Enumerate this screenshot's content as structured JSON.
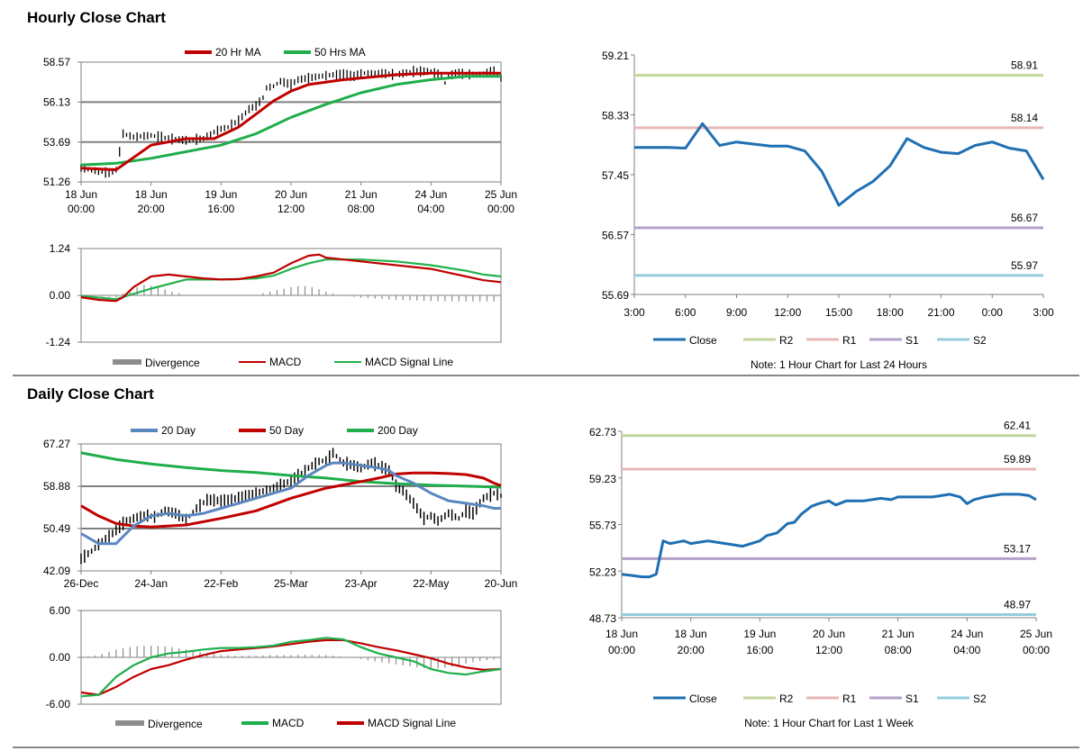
{
  "sections": {
    "hourly_title": "Hourly Close Chart",
    "daily_title": "Daily Close Chart"
  },
  "colors": {
    "ma_red": "#c00000",
    "ma_green": "#1fae4b",
    "ma_blue": "#5b87c0",
    "macd_signal_green": "#22b24c",
    "divergence": "#8c8c8c",
    "close": "#1f6fb2",
    "r2": "#c3d69b",
    "r1": "#e6b8b7",
    "s1": "#b3a2c7",
    "s2": "#93cddd",
    "grid": "#808080",
    "price": "#000000"
  },
  "chart_data": [
    {
      "id": "hourly_ma",
      "type": "line",
      "legend": [
        "20 Hr MA",
        "50 Hrs MA"
      ],
      "yticks": [
        "58.57",
        "56.13",
        "53.69",
        "51.26"
      ],
      "ylim": [
        51.26,
        58.57
      ],
      "xticks": [
        [
          "18 Jun",
          "00:00"
        ],
        [
          "18 Jun",
          "20:00"
        ],
        [
          "19 Jun",
          "16:00"
        ],
        [
          "20 Jun",
          "12:00"
        ],
        [
          "21 Jun",
          "08:00"
        ],
        [
          "24 Jun",
          "04:00"
        ],
        [
          "25 Jun",
          "00:00"
        ]
      ],
      "x_count": 121,
      "price": {
        "x": [
          0,
          8,
          10,
          12,
          15,
          20,
          25,
          30,
          35,
          38,
          40,
          42,
          45,
          48,
          50,
          52,
          53,
          55,
          57,
          60,
          62,
          65,
          68,
          72,
          75,
          78,
          80,
          85,
          90,
          95,
          100,
          103,
          104,
          105,
          106,
          108,
          110,
          115,
          118,
          120
        ],
        "y": [
          52.1,
          51.8,
          52.0,
          54.2,
          54.0,
          54.1,
          53.9,
          53.8,
          53.9,
          54.3,
          54.5,
          54.6,
          55.0,
          55.7,
          55.9,
          56.4,
          57.0,
          57.1,
          57.4,
          57.2,
          57.5,
          57.6,
          57.7,
          57.8,
          57.8,
          57.7,
          57.9,
          57.9,
          57.8,
          58.0,
          58.0,
          57.7,
          57.3,
          57.7,
          57.8,
          57.9,
          57.8,
          57.9,
          58.0,
          57.6
        ]
      },
      "series": [
        {
          "name": "20 Hr MA",
          "x": [
            0,
            10,
            12,
            20,
            30,
            38,
            45,
            50,
            55,
            60,
            65,
            75,
            90,
            100,
            110,
            120
          ],
          "y": [
            52.1,
            52.0,
            52.3,
            53.5,
            53.9,
            53.9,
            54.6,
            55.4,
            56.2,
            56.8,
            57.2,
            57.5,
            57.8,
            57.9,
            57.9,
            57.9
          ]
        },
        {
          "name": "50 Hrs MA",
          "x": [
            0,
            10,
            20,
            30,
            40,
            50,
            60,
            70,
            80,
            90,
            100,
            110,
            120
          ],
          "y": [
            52.3,
            52.4,
            52.7,
            53.1,
            53.5,
            54.2,
            55.2,
            56.0,
            56.7,
            57.2,
            57.5,
            57.7,
            57.7
          ]
        }
      ]
    },
    {
      "id": "hourly_macd",
      "type": "bar+line",
      "legend": [
        "Divergence",
        "MACD",
        "MACD Signal Line"
      ],
      "yticks": [
        "1.24",
        "0.00",
        "-1.24"
      ],
      "ylim": [
        -1.24,
        1.24
      ],
      "x_count": 121,
      "divergence": {
        "x": [
          0,
          10,
          14,
          18,
          22,
          26,
          30,
          35,
          38,
          45,
          50,
          55,
          60,
          63,
          66,
          70,
          74,
          80,
          90,
          100,
          110,
          120
        ],
        "y": [
          0,
          -0.05,
          0.15,
          0.28,
          0.22,
          0.1,
          0.02,
          0.0,
          0.0,
          0.0,
          0.02,
          0.12,
          0.22,
          0.26,
          0.22,
          0.1,
          0.0,
          -0.06,
          -0.12,
          -0.15,
          -0.16,
          -0.16
        ]
      },
      "series": [
        {
          "name": "MACD",
          "x": [
            0,
            5,
            10,
            12,
            15,
            20,
            25,
            30,
            35,
            40,
            45,
            50,
            55,
            60,
            65,
            68,
            70,
            75,
            80,
            90,
            100,
            110,
            115,
            120
          ],
          "y": [
            -0.05,
            -0.12,
            -0.15,
            -0.05,
            0.22,
            0.5,
            0.55,
            0.5,
            0.45,
            0.42,
            0.43,
            0.5,
            0.6,
            0.85,
            1.05,
            1.08,
            1.0,
            0.95,
            0.9,
            0.8,
            0.7,
            0.5,
            0.4,
            0.35
          ]
        },
        {
          "name": "MACD Signal Line",
          "x": [
            0,
            10,
            20,
            30,
            40,
            50,
            55,
            60,
            65,
            70,
            75,
            80,
            90,
            100,
            110,
            115,
            120
          ],
          "y": [
            -0.02,
            -0.1,
            0.18,
            0.42,
            0.42,
            0.45,
            0.52,
            0.7,
            0.85,
            0.95,
            0.95,
            0.95,
            0.9,
            0.8,
            0.65,
            0.55,
            0.5
          ]
        }
      ]
    },
    {
      "id": "hourly_24h",
      "type": "line",
      "legend": [
        "Close",
        "R2",
        "R1",
        "S1",
        "S2"
      ],
      "yticks": [
        "59.21",
        "58.33",
        "57.45",
        "56.57",
        "55.69"
      ],
      "ylim": [
        55.69,
        59.21
      ],
      "xticks": [
        "3:00",
        "6:00",
        "9:00",
        "12:00",
        "15:00",
        "18:00",
        "21:00",
        "0:00",
        "3:00"
      ],
      "levels": [
        {
          "name": "R2",
          "value": 58.91,
          "label": "58.91"
        },
        {
          "name": "R1",
          "value": 58.14,
          "label": "58.14"
        },
        {
          "name": "S1",
          "value": 56.67,
          "label": "56.67"
        },
        {
          "name": "S2",
          "value": 55.97,
          "label": "55.97"
        }
      ],
      "close": {
        "x": [
          0,
          1,
          2,
          3,
          4,
          5,
          6,
          7,
          8,
          9,
          10,
          11,
          12,
          13,
          14,
          15,
          16,
          17,
          18,
          19,
          20,
          21,
          22,
          23,
          24
        ],
        "y": [
          57.85,
          57.85,
          57.85,
          57.84,
          58.2,
          57.88,
          57.93,
          57.9,
          57.87,
          57.87,
          57.8,
          57.5,
          57.0,
          57.2,
          57.35,
          57.58,
          57.98,
          57.85,
          57.78,
          57.76,
          57.88,
          57.93,
          57.84,
          57.8,
          57.38
        ]
      },
      "note": "Note: 1 Hour Chart for Last 24 Hours"
    },
    {
      "id": "daily_ma",
      "type": "line",
      "legend": [
        "20 Day",
        "50 Day",
        "200 Day"
      ],
      "yticks": [
        "67.27",
        "58.88",
        "50.49",
        "42.09"
      ],
      "ylim": [
        42.09,
        67.27
      ],
      "xticks": [
        "26-Dec",
        "24-Jan",
        "22-Feb",
        "25-Mar",
        "23-Apr",
        "22-May",
        "20-Jun"
      ],
      "x_count": 121,
      "price": {
        "x": [
          0,
          3,
          6,
          9,
          12,
          15,
          18,
          21,
          24,
          27,
          30,
          33,
          36,
          40,
          45,
          50,
          55,
          60,
          65,
          68,
          70,
          72,
          75,
          78,
          80,
          83,
          85,
          88,
          90,
          92,
          95,
          98,
          100,
          102,
          105,
          108,
          110,
          112,
          115,
          118,
          120
        ],
        "y": [
          44.5,
          46.0,
          48.0,
          49.5,
          51.5,
          52.5,
          53.2,
          52.8,
          54.0,
          53.5,
          52.2,
          54.5,
          56.2,
          56.0,
          56.5,
          57.5,
          58.5,
          60.0,
          62.5,
          63.8,
          64.0,
          65.5,
          63.5,
          63.0,
          62.5,
          63.5,
          63.0,
          62.0,
          59.0,
          58.0,
          55.5,
          52.5,
          53.0,
          52.0,
          53.5,
          52.5,
          54.0,
          53.5,
          56.5,
          57.5,
          57.0
        ]
      },
      "series": [
        {
          "name": "20 Day",
          "x": [
            0,
            5,
            10,
            15,
            20,
            25,
            30,
            35,
            40,
            45,
            50,
            55,
            60,
            65,
            70,
            72,
            75,
            80,
            85,
            88,
            90,
            95,
            100,
            105,
            110,
            115,
            118,
            120
          ],
          "y": [
            49.5,
            47.5,
            47.5,
            51.0,
            53.0,
            53.5,
            53.0,
            53.5,
            54.5,
            55.5,
            56.5,
            57.5,
            58.5,
            61.0,
            63.0,
            63.5,
            63.5,
            63.0,
            62.5,
            62.0,
            61.0,
            59.5,
            57.5,
            56.0,
            55.5,
            55.0,
            54.5,
            54.5
          ]
        },
        {
          "name": "50 Day",
          "x": [
            0,
            5,
            10,
            15,
            20,
            25,
            30,
            40,
            50,
            60,
            70,
            80,
            85,
            90,
            95,
            100,
            105,
            110,
            115,
            118,
            120
          ],
          "y": [
            55.0,
            53.0,
            51.5,
            51.0,
            50.8,
            51.0,
            51.2,
            52.5,
            54.0,
            56.5,
            58.5,
            59.8,
            60.5,
            61.3,
            61.5,
            61.5,
            61.4,
            61.2,
            60.5,
            59.5,
            59.0
          ]
        },
        {
          "name": "200 Day",
          "x": [
            0,
            10,
            20,
            30,
            40,
            50,
            60,
            70,
            80,
            90,
            100,
            110,
            120
          ],
          "y": [
            65.5,
            64.2,
            63.3,
            62.6,
            62.0,
            61.6,
            61.0,
            60.5,
            59.8,
            59.4,
            59.1,
            58.9,
            58.7
          ]
        }
      ]
    },
    {
      "id": "daily_macd",
      "type": "bar+line",
      "legend": [
        "Divergence",
        "MACD",
        "MACD Signal Line"
      ],
      "yticks": [
        "6.00",
        "0.00",
        "-6.00"
      ],
      "ylim": [
        -6.0,
        6.0
      ],
      "x_count": 121,
      "divergence": {
        "x": [
          0,
          5,
          10,
          15,
          20,
          25,
          30,
          35,
          40,
          45,
          50,
          55,
          60,
          65,
          70,
          75,
          80,
          85,
          90,
          95,
          100,
          105,
          110,
          115,
          120
        ],
        "y": [
          0.0,
          0.3,
          1.0,
          1.4,
          1.5,
          1.4,
          1.0,
          0.6,
          0.3,
          0.2,
          0.2,
          0.3,
          0.3,
          0.35,
          0.3,
          0.1,
          -0.2,
          -0.6,
          -0.9,
          -1.2,
          -1.5,
          -1.3,
          -0.8,
          -0.4,
          -0.2
        ]
      },
      "series": [
        {
          "name": "MACD",
          "x": [
            0,
            5,
            10,
            15,
            20,
            25,
            30,
            35,
            40,
            45,
            50,
            55,
            60,
            65,
            70,
            75,
            80,
            85,
            90,
            95,
            100,
            105,
            110,
            115,
            120
          ],
          "y": [
            -5.0,
            -4.8,
            -2.5,
            -1.0,
            0.0,
            0.5,
            0.7,
            1.0,
            1.2,
            1.2,
            1.3,
            1.5,
            2.0,
            2.2,
            2.5,
            2.3,
            1.3,
            0.5,
            0.0,
            -0.5,
            -1.5,
            -2.0,
            -2.2,
            -1.8,
            -1.5
          ]
        },
        {
          "name": "MACD Signal Line",
          "x": [
            0,
            5,
            10,
            15,
            20,
            25,
            30,
            35,
            40,
            45,
            50,
            55,
            60,
            65,
            70,
            75,
            80,
            85,
            90,
            95,
            100,
            105,
            110,
            115,
            120
          ],
          "y": [
            -4.5,
            -4.8,
            -3.8,
            -2.5,
            -1.5,
            -1.0,
            -0.3,
            0.3,
            0.8,
            1.0,
            1.2,
            1.4,
            1.7,
            2.0,
            2.2,
            2.2,
            1.8,
            1.3,
            0.9,
            0.4,
            -0.1,
            -0.8,
            -1.3,
            -1.6,
            -1.5
          ]
        }
      ]
    },
    {
      "id": "daily_week",
      "type": "line",
      "legend": [
        "Close",
        "R2",
        "R1",
        "S1",
        "S2"
      ],
      "yticks": [
        "62.73",
        "59.23",
        "55.73",
        "52.23",
        "48.73"
      ],
      "ylim": [
        48.73,
        62.73
      ],
      "xticks": [
        [
          "18 Jun",
          "00:00"
        ],
        [
          "18 Jun",
          "20:00"
        ],
        [
          "19 Jun",
          "16:00"
        ],
        [
          "20 Jun",
          "12:00"
        ],
        [
          "21 Jun",
          "08:00"
        ],
        [
          "24 Jun",
          "04:00"
        ],
        [
          "25 Jun",
          "00:00"
        ]
      ],
      "x_count": 121,
      "levels": [
        {
          "name": "R2",
          "value": 62.41,
          "label": "62.41"
        },
        {
          "name": "R1",
          "value": 59.89,
          "label": "59.89"
        },
        {
          "name": "S1",
          "value": 53.17,
          "label": "53.17"
        },
        {
          "name": "S2",
          "value": 48.97,
          "label": "48.97"
        }
      ],
      "close": {
        "x": [
          0,
          3,
          6,
          8,
          10,
          12,
          14,
          16,
          18,
          20,
          25,
          30,
          35,
          40,
          42,
          45,
          48,
          50,
          52,
          55,
          57,
          60,
          62,
          65,
          70,
          75,
          78,
          80,
          85,
          90,
          95,
          98,
          100,
          102,
          105,
          110,
          115,
          118,
          120
        ],
        "y": [
          52.0,
          51.9,
          51.8,
          51.8,
          52.0,
          54.5,
          54.3,
          54.4,
          54.5,
          54.3,
          54.5,
          54.3,
          54.1,
          54.5,
          54.9,
          55.1,
          55.8,
          55.9,
          56.5,
          57.1,
          57.3,
          57.5,
          57.2,
          57.5,
          57.5,
          57.7,
          57.6,
          57.8,
          57.8,
          57.8,
          58.0,
          57.8,
          57.3,
          57.6,
          57.8,
          58.0,
          58.0,
          57.9,
          57.6
        ]
      },
      "note": "Note: 1 Hour Chart for Last 1 Week"
    }
  ]
}
